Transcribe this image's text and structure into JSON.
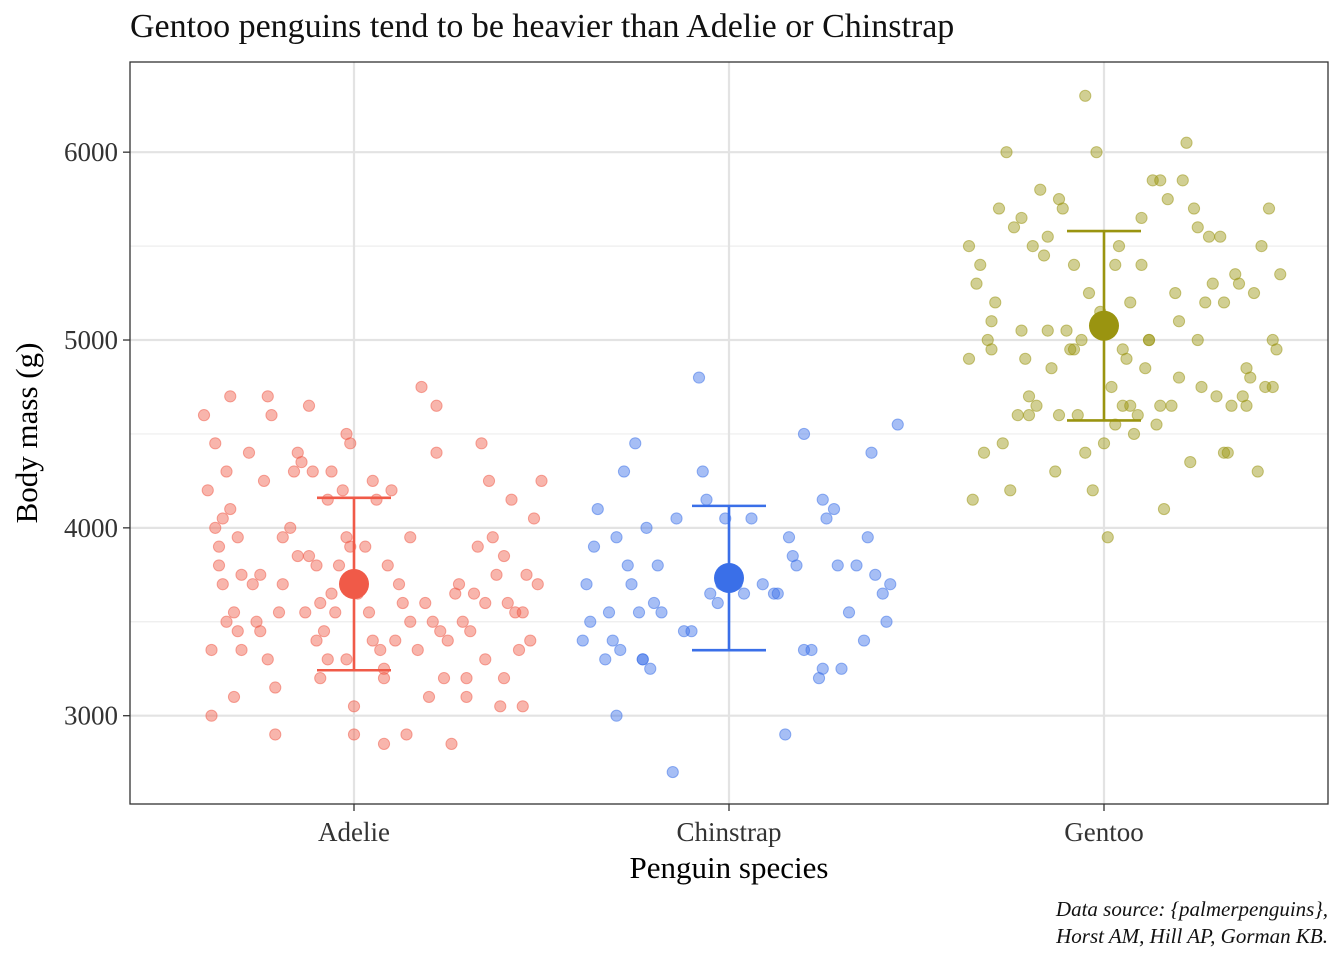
{
  "chart_data": {
    "type": "scatter",
    "title": "Gentoo penguins tend to be heavier than Adelie or Chinstrap",
    "xlabel": "Penguin species",
    "ylabel": "Body mass (g)",
    "categories": [
      "Adelie",
      "Chinstrap",
      "Gentoo"
    ],
    "ylim": [
      2530,
      6480
    ],
    "yticks": [
      3000,
      4000,
      5000,
      6000
    ],
    "grid": true,
    "caption": [
      "Data source: {palmerpenguins},",
      "Horst AM, Hill AP, Gorman KB."
    ],
    "colors": {
      "Adelie": "#f05a48",
      "Chinstrap": "#3a6fe8",
      "Gentoo": "#9a9410"
    },
    "summary": [
      {
        "category": "Adelie",
        "mean": 3701,
        "lower": 3242,
        "upper": 4160
      },
      {
        "category": "Chinstrap",
        "mean": 3733,
        "lower": 3349,
        "upper": 4117
      },
      {
        "category": "Gentoo",
        "mean": 5076,
        "lower": 4572,
        "upper": 5580
      }
    ],
    "series": [
      {
        "category": "Adelie",
        "points": [
          [
            -0.4,
            4600
          ],
          [
            -0.39,
            4200
          ],
          [
            -0.38,
            3000
          ],
          [
            -0.38,
            3350
          ],
          [
            -0.37,
            4450
          ],
          [
            -0.37,
            4000
          ],
          [
            -0.36,
            3900
          ],
          [
            -0.36,
            3800
          ],
          [
            -0.35,
            4050
          ],
          [
            -0.35,
            3700
          ],
          [
            -0.34,
            4300
          ],
          [
            -0.34,
            3500
          ],
          [
            -0.33,
            4700
          ],
          [
            -0.33,
            4100
          ],
          [
            -0.32,
            3100
          ],
          [
            -0.32,
            3550
          ],
          [
            -0.31,
            3950
          ],
          [
            -0.31,
            3450
          ],
          [
            -0.3,
            3750
          ],
          [
            -0.3,
            3350
          ],
          [
            -0.28,
            4400
          ],
          [
            -0.27,
            3700
          ],
          [
            -0.26,
            3500
          ],
          [
            -0.25,
            3750
          ],
          [
            -0.24,
            4250
          ],
          [
            -0.23,
            3300
          ],
          [
            -0.23,
            4700
          ],
          [
            -0.22,
            4600
          ],
          [
            -0.21,
            3150
          ],
          [
            -0.21,
            2900
          ],
          [
            -0.2,
            3550
          ],
          [
            -0.19,
            3950
          ],
          [
            -0.19,
            3700
          ],
          [
            -0.17,
            4000
          ],
          [
            -0.16,
            4300
          ],
          [
            -0.15,
            4400
          ],
          [
            -0.14,
            4350
          ],
          [
            -0.13,
            3550
          ],
          [
            -0.12,
            4650
          ],
          [
            -0.12,
            3850
          ],
          [
            -0.11,
            4300
          ],
          [
            -0.1,
            3800
          ],
          [
            -0.1,
            3400
          ],
          [
            -0.09,
            3600
          ],
          [
            -0.09,
            3200
          ],
          [
            -0.08,
            3450
          ],
          [
            -0.07,
            4150
          ],
          [
            -0.07,
            3300
          ],
          [
            -0.06,
            4300
          ],
          [
            -0.06,
            3650
          ],
          [
            -0.05,
            3550
          ],
          [
            -0.04,
            3800
          ],
          [
            -0.03,
            4200
          ],
          [
            -0.02,
            4500
          ],
          [
            -0.02,
            3950
          ],
          [
            -0.02,
            3300
          ],
          [
            -0.01,
            4450
          ],
          [
            -0.01,
            3900
          ],
          [
            0.0,
            3050
          ],
          [
            0.0,
            2900
          ],
          [
            0.01,
            3650
          ],
          [
            0.02,
            3700
          ],
          [
            0.03,
            3900
          ],
          [
            0.04,
            3550
          ],
          [
            0.05,
            4250
          ],
          [
            0.06,
            4150
          ],
          [
            0.07,
            3350
          ],
          [
            0.08,
            3200
          ],
          [
            0.08,
            3250
          ],
          [
            0.08,
            2850
          ],
          [
            0.09,
            3800
          ],
          [
            0.1,
            4200
          ],
          [
            0.11,
            3400
          ],
          [
            0.12,
            3700
          ],
          [
            0.13,
            3600
          ],
          [
            0.14,
            2900
          ],
          [
            0.15,
            3500
          ],
          [
            0.17,
            3350
          ],
          [
            0.18,
            4750
          ],
          [
            0.19,
            3600
          ],
          [
            0.2,
            3100
          ],
          [
            0.21,
            3500
          ],
          [
            0.22,
            4650
          ],
          [
            0.22,
            4400
          ],
          [
            0.23,
            3450
          ],
          [
            0.24,
            3200
          ],
          [
            0.25,
            3400
          ],
          [
            0.26,
            2850
          ],
          [
            0.27,
            3650
          ],
          [
            0.28,
            3700
          ],
          [
            0.29,
            3500
          ],
          [
            0.3,
            3100
          ],
          [
            0.31,
            3450
          ],
          [
            0.32,
            3650
          ],
          [
            0.33,
            3900
          ],
          [
            0.34,
            4450
          ],
          [
            0.35,
            3300
          ],
          [
            0.36,
            4250
          ],
          [
            0.37,
            3950
          ],
          [
            0.38,
            3750
          ],
          [
            0.39,
            3050
          ],
          [
            0.4,
            3850
          ],
          [
            0.41,
            3600
          ],
          [
            0.42,
            4150
          ],
          [
            0.43,
            3550
          ],
          [
            0.44,
            3350
          ],
          [
            0.45,
            3050
          ],
          [
            0.46,
            3750
          ],
          [
            0.47,
            3400
          ],
          [
            0.48,
            4050
          ],
          [
            0.49,
            3700
          ],
          [
            0.5,
            4250
          ],
          [
            -0.15,
            3850
          ],
          [
            0.15,
            3950
          ],
          [
            0.3,
            3200
          ],
          [
            0.35,
            3600
          ],
          [
            0.4,
            3200
          ],
          [
            -0.25,
            3450
          ],
          [
            0.05,
            3400
          ],
          [
            0.45,
            3550
          ]
        ]
      },
      {
        "category": "Chinstrap",
        "points": [
          [
            -0.39,
            3400
          ],
          [
            -0.38,
            3700
          ],
          [
            -0.37,
            3500
          ],
          [
            -0.36,
            3900
          ],
          [
            -0.35,
            4100
          ],
          [
            -0.33,
            3300
          ],
          [
            -0.32,
            3550
          ],
          [
            -0.31,
            3400
          ],
          [
            -0.3,
            3950
          ],
          [
            -0.29,
            3350
          ],
          [
            -0.28,
            4300
          ],
          [
            -0.27,
            3800
          ],
          [
            -0.26,
            3700
          ],
          [
            -0.25,
            4450
          ],
          [
            -0.24,
            3550
          ],
          [
            -0.23,
            3300
          ],
          [
            -0.22,
            4000
          ],
          [
            -0.21,
            3250
          ],
          [
            -0.2,
            3600
          ],
          [
            -0.19,
            3800
          ],
          [
            -0.18,
            3550
          ],
          [
            -0.15,
            2700
          ],
          [
            -0.14,
            4050
          ],
          [
            -0.12,
            3450
          ],
          [
            -0.1,
            3450
          ],
          [
            -0.08,
            4800
          ],
          [
            -0.07,
            4300
          ],
          [
            -0.06,
            4150
          ],
          [
            -0.05,
            3650
          ],
          [
            -0.03,
            3600
          ],
          [
            -0.02,
            3700
          ],
          [
            -0.01,
            4050
          ],
          [
            0.02,
            3700
          ],
          [
            0.04,
            3650
          ],
          [
            0.06,
            4050
          ],
          [
            0.09,
            3700
          ],
          [
            0.13,
            3650
          ],
          [
            0.15,
            2900
          ],
          [
            0.16,
            3950
          ],
          [
            0.17,
            3850
          ],
          [
            0.18,
            3800
          ],
          [
            0.2,
            4500
          ],
          [
            0.22,
            3350
          ],
          [
            0.24,
            3200
          ],
          [
            0.25,
            4150
          ],
          [
            0.26,
            4050
          ],
          [
            0.28,
            4100
          ],
          [
            0.29,
            3800
          ],
          [
            0.3,
            3250
          ],
          [
            0.32,
            3550
          ],
          [
            0.34,
            3800
          ],
          [
            0.36,
            3400
          ],
          [
            0.37,
            3950
          ],
          [
            0.38,
            4400
          ],
          [
            0.39,
            3750
          ],
          [
            0.41,
            3650
          ],
          [
            0.42,
            3500
          ],
          [
            0.43,
            3700
          ],
          [
            0.45,
            4550
          ],
          [
            0.2,
            3350
          ],
          [
            0.25,
            3250
          ],
          [
            -0.23,
            3300
          ],
          [
            0.12,
            3650
          ],
          [
            -0.3,
            3000
          ]
        ]
      },
      {
        "category": "Gentoo",
        "points": [
          [
            -0.36,
            4900
          ],
          [
            -0.36,
            5500
          ],
          [
            -0.35,
            4150
          ],
          [
            -0.34,
            5300
          ],
          [
            -0.33,
            5400
          ],
          [
            -0.32,
            4400
          ],
          [
            -0.31,
            5000
          ],
          [
            -0.3,
            5100
          ],
          [
            -0.29,
            5200
          ],
          [
            -0.28,
            5700
          ],
          [
            -0.27,
            4450
          ],
          [
            -0.26,
            6000
          ],
          [
            -0.25,
            4200
          ],
          [
            -0.24,
            5600
          ],
          [
            -0.23,
            4600
          ],
          [
            -0.22,
            5650
          ],
          [
            -0.21,
            4900
          ],
          [
            -0.2,
            4700
          ],
          [
            -0.19,
            5500
          ],
          [
            -0.18,
            4650
          ],
          [
            -0.17,
            5800
          ],
          [
            -0.16,
            5450
          ],
          [
            -0.15,
            5550
          ],
          [
            -0.14,
            4850
          ],
          [
            -0.13,
            4300
          ],
          [
            -0.12,
            4600
          ],
          [
            -0.11,
            5700
          ],
          [
            -0.1,
            5050
          ],
          [
            -0.09,
            4950
          ],
          [
            -0.08,
            5400
          ],
          [
            -0.07,
            4600
          ],
          [
            -0.06,
            5000
          ],
          [
            -0.05,
            4400
          ],
          [
            -0.04,
            5250
          ],
          [
            -0.03,
            4200
          ],
          [
            -0.02,
            6000
          ],
          [
            -0.01,
            5150
          ],
          [
            0.0,
            5100
          ],
          [
            0.01,
            3950
          ],
          [
            0.02,
            4750
          ],
          [
            0.03,
            4550
          ],
          [
            0.04,
            5500
          ],
          [
            0.05,
            4650
          ],
          [
            0.06,
            4900
          ],
          [
            0.07,
            5200
          ],
          [
            0.08,
            4500
          ],
          [
            0.09,
            4600
          ],
          [
            0.1,
            5650
          ],
          [
            0.11,
            4850
          ],
          [
            0.12,
            5000
          ],
          [
            0.13,
            5850
          ],
          [
            0.14,
            4550
          ],
          [
            0.15,
            5850
          ],
          [
            0.16,
            4100
          ],
          [
            0.17,
            5750
          ],
          [
            0.18,
            4650
          ],
          [
            0.19,
            5250
          ],
          [
            0.2,
            4800
          ],
          [
            0.21,
            5850
          ],
          [
            0.22,
            6050
          ],
          [
            0.23,
            4350
          ],
          [
            0.24,
            5700
          ],
          [
            0.25,
            5000
          ],
          [
            0.26,
            4750
          ],
          [
            0.27,
            5200
          ],
          [
            0.28,
            5550
          ],
          [
            0.29,
            5300
          ],
          [
            0.3,
            4700
          ],
          [
            0.31,
            5550
          ],
          [
            0.32,
            5200
          ],
          [
            0.33,
            4400
          ],
          [
            0.34,
            4650
          ],
          [
            0.35,
            5350
          ],
          [
            0.36,
            5300
          ],
          [
            0.37,
            4700
          ],
          [
            0.38,
            4850
          ],
          [
            0.39,
            4800
          ],
          [
            0.4,
            5250
          ],
          [
            0.41,
            4300
          ],
          [
            0.42,
            5500
          ],
          [
            0.43,
            4750
          ],
          [
            0.44,
            5700
          ],
          [
            0.45,
            5000
          ],
          [
            0.46,
            4950
          ],
          [
            0.47,
            5350
          ],
          [
            -0.15,
            5050
          ],
          [
            -0.05,
            6300
          ],
          [
            0.05,
            4950
          ],
          [
            0.15,
            4650
          ],
          [
            0.25,
            5600
          ],
          [
            -0.3,
            4950
          ],
          [
            0.32,
            4400
          ],
          [
            0.45,
            4750
          ],
          [
            0.1,
            5400
          ],
          [
            -0.2,
            4600
          ],
          [
            0.0,
            4450
          ],
          [
            -0.08,
            4950
          ],
          [
            0.07,
            4650
          ],
          [
            0.2,
            5100
          ],
          [
            0.38,
            4650
          ],
          [
            -0.12,
            5750
          ],
          [
            0.12,
            5000
          ],
          [
            -0.22,
            5050
          ],
          [
            0.03,
            5400
          ]
        ]
      }
    ]
  }
}
